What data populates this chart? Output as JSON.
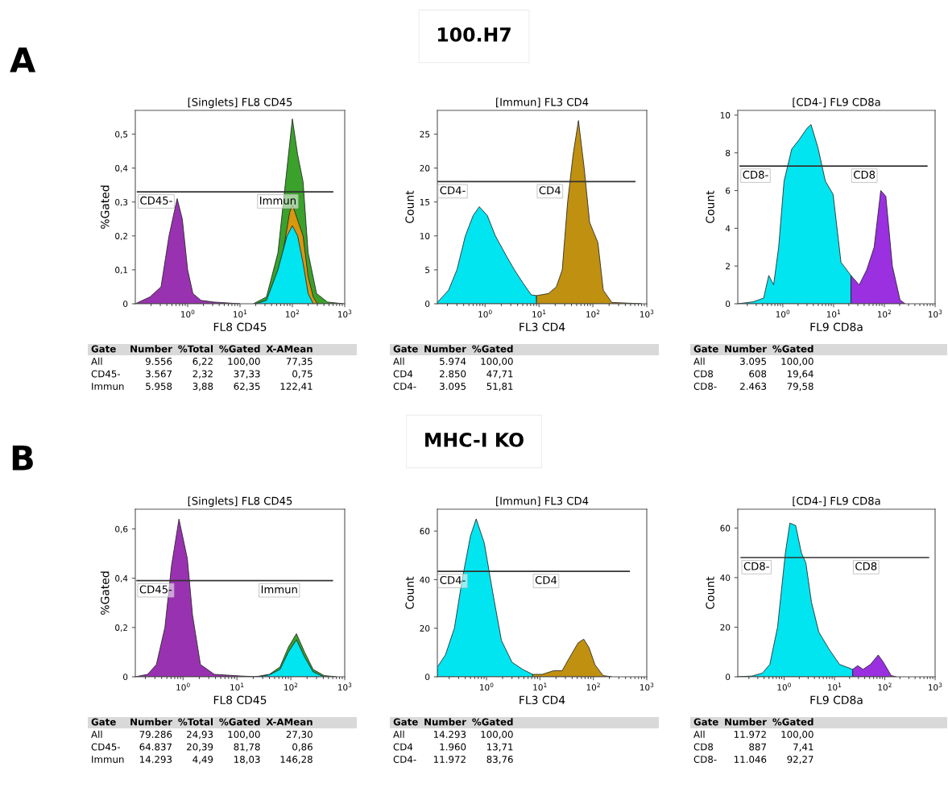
{
  "chart_data": [
    {
      "type": "other",
      "title": "100.H7",
      "annotations": [
        "A"
      ]
    },
    {
      "type": "area",
      "title": "[Singlets] FL8 CD45",
      "xlabel": "FL8 CD45",
      "ylabel": "%Gated",
      "log": "x",
      "xlim": [
        0.1,
        1000
      ],
      "xticks": [
        {
          "value": 1,
          "label": "10$^{0}$"
        },
        {
          "value": 10,
          "label": "10$^{1}$"
        },
        {
          "value": 100,
          "label": "10$^{2}$"
        },
        {
          "value": 1000,
          "label": "10$^{3}$"
        }
      ],
      "ylim": [
        0,
        0.57
      ],
      "yticks": [
        0,
        {
          "value": 0.1,
          "label": "0,1"
        },
        {
          "value": 0.2,
          "label": "0,2"
        },
        {
          "value": 0.3,
          "label": "0,3"
        },
        {
          "value": 0.4,
          "label": "0,4"
        },
        {
          "value": 0.5,
          "label": "0,5"
        }
      ],
      "series": [
        {
          "color": "#3aa12b",
          "x": [
            18,
            32,
            53,
            79,
            100,
            126,
            160,
            200,
            290,
            470,
            950
          ],
          "values": [
            0,
            0.02,
            0.15,
            0.4,
            0.545,
            0.44,
            0.36,
            0.15,
            0.03,
            0.005,
            0
          ]
        },
        {
          "color": "#d9960f",
          "x": [
            40,
            66,
            89,
            100,
            112,
            160,
            200,
            250,
            300
          ],
          "values": [
            0,
            0.15,
            0.27,
            0.29,
            0.27,
            0.2,
            0.08,
            0.02,
            0
          ]
        },
        {
          "color": "#00e5f0",
          "x": [
            20,
            32,
            53,
            79,
            100,
            126,
            160,
            200,
            250
          ],
          "values": [
            0,
            0.01,
            0.1,
            0.2,
            0.23,
            0.2,
            0.12,
            0.03,
            0
          ]
        },
        {
          "color": "#9932b0",
          "x": [
            0.1,
            0.19,
            0.31,
            0.44,
            0.63,
            0.79,
            1.0,
            1.26,
            1.8,
            3.2,
            10
          ],
          "values": [
            0,
            0.02,
            0.05,
            0.2,
            0.31,
            0.25,
            0.1,
            0.03,
            0.01,
            0.005,
            0
          ]
        },
        {
          "type": "line",
          "color": "#333333",
          "x": [
            0.11,
            21,
            590
          ],
          "values": [
            0.33,
            0.33,
            0.33
          ]
        }
      ],
      "annotations": [
        {
          "text": "CD45-",
          "x": 0.11,
          "y": 0.33
        },
        {
          "text": "Immun",
          "x": 21,
          "y": 0.33
        },
        "Gate Number %Total %Gated X-AMean",
        "All 9.556 6,22 100,00 77,35",
        "CD45- 3.567 2,32 37,33 0,75",
        "Immun 5.958 3,88 62,35 122,41"
      ]
    },
    {
      "type": "area",
      "title": "[Immun] FL3 CD4",
      "xlabel": "FL3 CD4",
      "ylabel": "Count",
      "log": "x",
      "xlim": [
        0.13,
        1000
      ],
      "xticks": [
        {
          "value": 1,
          "label": "10$^{0}$"
        },
        {
          "value": 10,
          "label": "10$^{1}$"
        },
        {
          "value": 100,
          "label": "10$^{2}$"
        },
        {
          "value": 1000,
          "label": "10$^{3}$"
        }
      ],
      "ylim": [
        0,
        28.5
      ],
      "yticks": [
        0,
        5,
        10,
        15,
        20,
        25
      ],
      "series": [
        {
          "color": "#00e5f0",
          "x": [
            0.13,
            0.21,
            0.3,
            0.43,
            0.6,
            0.78,
            1.1,
            1.55,
            2.5,
            3.5,
            5.1,
            7.2,
            9
          ],
          "values": [
            0.2,
            2,
            5,
            10,
            13,
            14.3,
            13,
            10,
            7,
            5,
            3,
            1.3,
            1.2
          ]
        },
        {
          "color": "#c09010",
          "x": [
            9,
            15,
            21,
            27,
            34,
            43,
            54,
            69,
            87,
            124,
            156,
            224,
            800
          ],
          "values": [
            1.2,
            1.5,
            2.5,
            5,
            15,
            22,
            27,
            20,
            12,
            9,
            2,
            0.2,
            0
          ]
        },
        {
          "type": "line",
          "color": "#333333",
          "x": [
            0.13,
            9,
            600
          ],
          "values": [
            18,
            18,
            18
          ]
        }
      ],
      "annotations": [
        {
          "text": "CD4-",
          "x": 0.13,
          "y": 18
        },
        {
          "text": "CD4",
          "x": 9,
          "y": 18
        },
        "Gate Number %Gated",
        "All 5.974 100,00",
        "CD4 2.850 47,71",
        "CD4- 3.095 51,81"
      ]
    },
    {
      "type": "area",
      "title": "[CD4-] FL9 CD8a",
      "xlabel": "FL9 CD8a",
      "ylabel": "Count",
      "log": "x",
      "xlim": [
        0.13,
        1000
      ],
      "xticks": [
        {
          "value": 1,
          "label": "10$^{0}$"
        },
        {
          "value": 10,
          "label": "10$^{1}$"
        },
        {
          "value": 100,
          "label": "10$^{2}$"
        },
        {
          "value": 1000,
          "label": "10$^{3}$"
        }
      ],
      "ylim": [
        0,
        10.25
      ],
      "yticks": [
        0,
        2,
        4,
        6,
        8,
        10
      ],
      "series": [
        {
          "color": "#00e5f0",
          "x": [
            0.13,
            0.26,
            0.42,
            0.53,
            0.66,
            0.83,
            1.06,
            1.5,
            2.1,
            3.0,
            3.6,
            4.9,
            6.9,
            9.8,
            14,
            22
          ],
          "values": [
            0,
            0.1,
            0.3,
            1.5,
            1.0,
            3,
            6.5,
            8.2,
            8.7,
            9.3,
            9.5,
            8.3,
            6.5,
            5.8,
            2.2,
            1.5
          ]
        },
        {
          "color": "#9a30e0",
          "x": [
            22,
            32,
            45,
            63,
            85,
            107,
            144,
            204,
            257
          ],
          "values": [
            1.5,
            1.0,
            1.8,
            3,
            6.0,
            5.7,
            2,
            0.2,
            0
          ]
        },
        {
          "type": "line",
          "color": "#333333",
          "x": [
            0.145,
            22,
            690
          ],
          "values": [
            7.3,
            7.3,
            7.3
          ]
        }
      ],
      "annotations": [
        {
          "text": "CD8-",
          "x": 0.145,
          "y": 7.3
        },
        {
          "text": "CD8",
          "x": 22,
          "y": 7.3
        },
        "Gate Number %Gated",
        "All 3.095 100,00",
        "CD8 608 19,64",
        "CD8- 2.463 79,58"
      ]
    },
    {
      "type": "other",
      "title": "MHC-I KO",
      "annotations": [
        "B"
      ]
    },
    {
      "type": "area",
      "title": "[Singlets] FL8 CD45",
      "xlabel": "FL8 CD45",
      "ylabel": "%Gated",
      "log": "x",
      "xlim": [
        0.13,
        1000
      ],
      "xticks": [
        {
          "value": 1,
          "label": "10$^{0}$"
        },
        {
          "value": 10,
          "label": "10$^{1}$"
        },
        {
          "value": 100,
          "label": "10$^{2}$"
        },
        {
          "value": 1000,
          "label": "10$^{3}$"
        }
      ],
      "ylim": [
        0,
        0.68
      ],
      "yticks": [
        0,
        {
          "value": 0.2,
          "label": "0,2"
        },
        {
          "value": 0.4,
          "label": "0,4"
        },
        {
          "value": 0.6,
          "label": "0,6"
        }
      ],
      "series": [
        {
          "color": "#3aa12b",
          "x": [
            22,
            40,
            63,
            90,
            127,
            180,
            259,
            413,
            700
          ],
          "values": [
            0,
            0.01,
            0.04,
            0.12,
            0.175,
            0.1,
            0.03,
            0.005,
            0
          ]
        },
        {
          "color": "#00e5f0",
          "x": [
            25,
            40,
            63,
            90,
            127,
            180,
            259,
            413
          ],
          "values": [
            0,
            0.008,
            0.03,
            0.1,
            0.15,
            0.08,
            0.02,
            0
          ]
        },
        {
          "color": "#9932b0",
          "x": [
            0.13,
            0.22,
            0.32,
            0.46,
            0.61,
            0.84,
            1.2,
            1.5,
            2.1,
            3.8,
            12,
            25
          ],
          "values": [
            0,
            0.01,
            0.05,
            0.2,
            0.45,
            0.64,
            0.48,
            0.25,
            0.05,
            0.01,
            0.003,
            0
          ]
        },
        {
          "type": "line",
          "color": "#333333",
          "x": [
            0.14,
            25,
            590
          ],
          "values": [
            0.39,
            0.39,
            0.39
          ]
        }
      ],
      "annotations": [
        {
          "text": "CD45-",
          "x": 0.14,
          "y": 0.39
        },
        {
          "text": "Immun",
          "x": 25,
          "y": 0.39
        },
        "Gate Number %Total %Gated X-AMean",
        "All 79.286 24,93 100,00 27,30",
        "CD45- 64.837 20,39 81,78 0,86",
        "Immun 14.293 4,49 18,03 146,28"
      ]
    },
    {
      "type": "area",
      "title": "[Immun] FL3 CD4",
      "xlabel": "FL3 CD4",
      "ylabel": "Count",
      "log": "x",
      "xlim": [
        0.12,
        1000
      ],
      "xticks": [
        {
          "value": 1,
          "label": "10$^{0}$"
        },
        {
          "value": 10,
          "label": "10$^{1}$"
        },
        {
          "value": 100,
          "label": "10$^{2}$"
        },
        {
          "value": 1000,
          "label": "10$^{3}$"
        }
      ],
      "ylim": [
        0,
        69
      ],
      "yticks": [
        0,
        20,
        40,
        60
      ],
      "series": [
        {
          "color": "#00e5f0",
          "x": [
            0.12,
            0.17,
            0.25,
            0.35,
            0.5,
            0.64,
            0.91,
            1.3,
            1.9,
            3.0,
            4.8,
            7.3
          ],
          "values": [
            4,
            9,
            20,
            40,
            58,
            65,
            55,
            35,
            15,
            6,
            3,
            1
          ]
        },
        {
          "color": "#c09010",
          "x": [
            7.3,
            11,
            18,
            26,
            36,
            52,
            66,
            83,
            107,
            152,
            220
          ],
          "values": [
            1,
            1,
            2.5,
            2.5,
            8,
            14,
            15.5,
            12,
            5,
            0.5,
            0
          ]
        },
        {
          "type": "line",
          "color": "#333333",
          "x": [
            0.12,
            7.3,
            470
          ],
          "values": [
            43.4,
            43.4,
            43.4
          ]
        }
      ],
      "annotations": [
        {
          "text": "CD4-",
          "x": 0.12,
          "y": 43.4
        },
        {
          "text": "CD4",
          "x": 7.3,
          "y": 43.4
        },
        "Gate Number %Gated",
        "All 14.293 100,00",
        "CD4 1.960 13,71",
        "CD4- 11.972 83,76"
      ]
    },
    {
      "type": "area",
      "title": "[CD4-] FL9 CD8a",
      "xlabel": "FL9 CD8a",
      "ylabel": "Count",
      "log": "x",
      "xlim": [
        0.12,
        1000
      ],
      "xticks": [
        {
          "value": 1,
          "label": "10$^{0}$"
        },
        {
          "value": 10,
          "label": "10$^{1}$"
        },
        {
          "value": 100,
          "label": "10$^{2}$"
        },
        {
          "value": 1000,
          "label": "10$^{3}$"
        }
      ],
      "ylim": [
        0,
        67.6
      ],
      "yticks": [
        0,
        20,
        40,
        60
      ],
      "series": [
        {
          "color": "#00e5f0",
          "x": [
            0.12,
            0.23,
            0.37,
            0.52,
            0.74,
            1.06,
            1.3,
            1.7,
            2.2,
            2.7,
            3.5,
            4.9,
            7.9,
            12.6,
            23
          ],
          "values": [
            0,
            0.3,
            1.5,
            5,
            20,
            50,
            62,
            61,
            50,
            46,
            30,
            18,
            11,
            5,
            3
          ]
        },
        {
          "color": "#9a30e0",
          "x": [
            23,
            29,
            37,
            52,
            74,
            93,
            134,
            170
          ],
          "values": [
            3,
            4.5,
            3,
            5,
            8.8,
            6,
            0.5,
            0
          ]
        },
        {
          "type": "line",
          "color": "#333333",
          "x": [
            0.14,
            23,
            740
          ],
          "values": [
            48.1,
            48.1,
            48.1
          ]
        }
      ],
      "annotations": [
        {
          "text": "CD8-",
          "x": 0.14,
          "y": 48.1
        },
        {
          "text": "CD8",
          "x": 23,
          "y": 48.1
        },
        "Gate Number %Gated",
        "All 11.972 100,00",
        "CD8 887 7,41",
        "CD8- 11.046 92,27"
      ]
    }
  ]
}
